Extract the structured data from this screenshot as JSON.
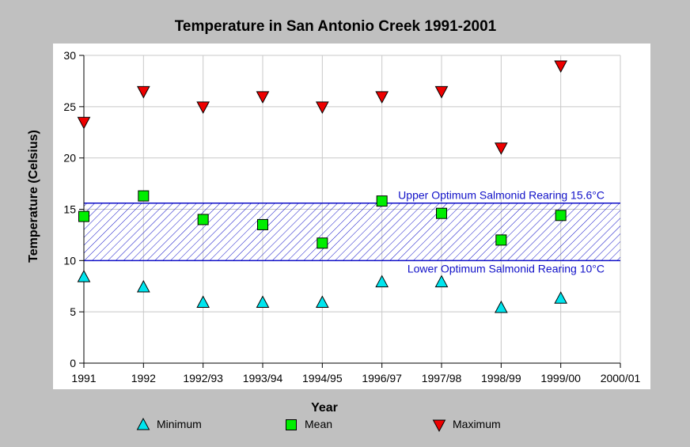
{
  "chart_data": {
    "type": "scatter",
    "title": "Temperature in San Antonio Creek 1991-2001",
    "xlabel": "Year",
    "ylabel": "Temperature (Celsius)",
    "categories": [
      "1991",
      "1992",
      "1992/93",
      "1993/94",
      "1994/95",
      "1996/97",
      "1997/98",
      "1998/99",
      "1999/00",
      "2000/01"
    ],
    "ylim": [
      0,
      30
    ],
    "yticks": [
      0,
      5,
      10,
      15,
      20,
      25,
      30
    ],
    "grid": true,
    "legend_position": "bottom",
    "series": [
      {
        "name": "Minimum",
        "marker": "triangle-up",
        "color": "#00e5ee",
        "values": [
          8.4,
          7.4,
          5.9,
          5.9,
          5.9,
          7.9,
          7.9,
          5.4,
          6.3,
          null
        ]
      },
      {
        "name": "Mean",
        "marker": "square",
        "color": "#00ee00",
        "values": [
          14.3,
          16.3,
          14.0,
          13.5,
          11.7,
          15.8,
          14.6,
          12.0,
          14.4,
          null
        ]
      },
      {
        "name": "Maximum",
        "marker": "triangle-down",
        "color": "#ee0000",
        "values": [
          23.5,
          26.5,
          25.0,
          26.0,
          25.0,
          26.0,
          26.5,
          21.0,
          29.0,
          null
        ]
      }
    ],
    "band": {
      "low": 10,
      "high": 15.6,
      "color": "#1010c8",
      "upper_label": "Upper Optimum Salmonid Rearing 15.6°C",
      "lower_label": "Lower Optimum Salmonid Rearing 10°C"
    }
  }
}
